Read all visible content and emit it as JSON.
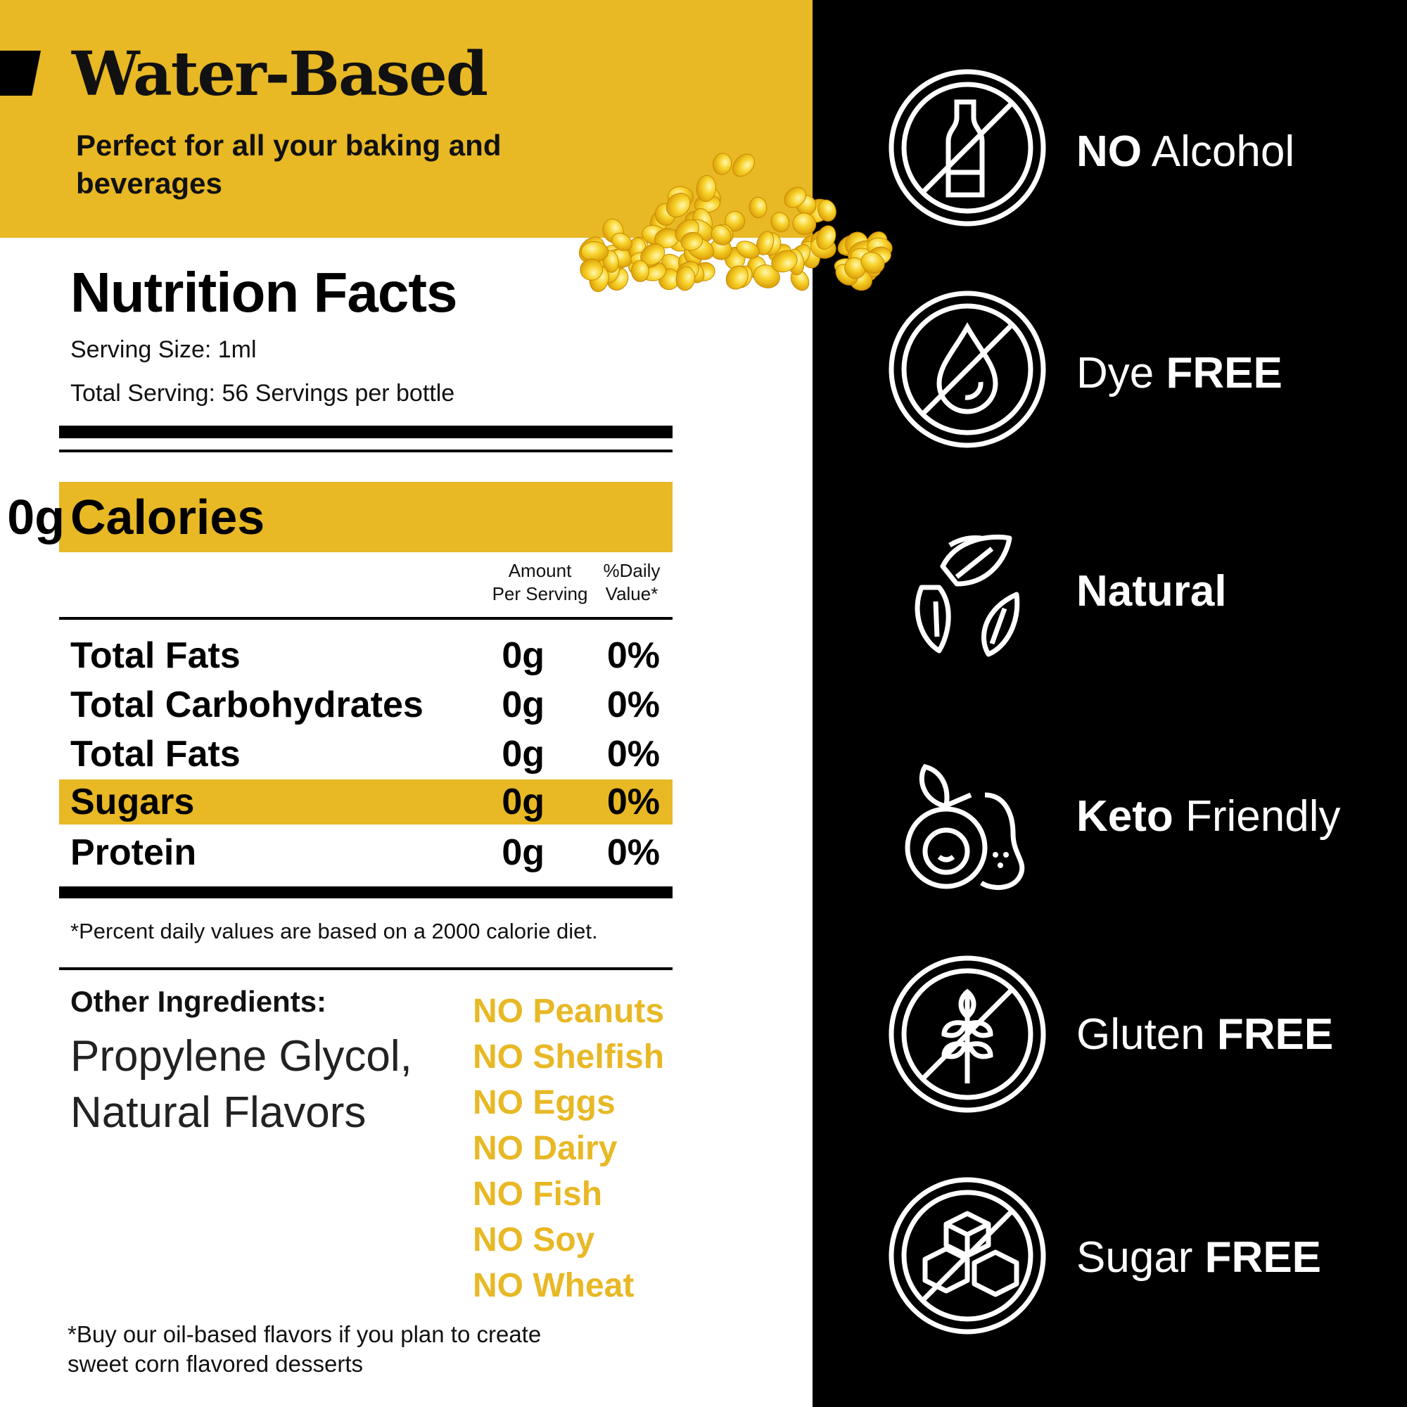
{
  "header": {
    "title": "Water-Based",
    "subtitle": "Perfect for all your baking and beverages"
  },
  "nutrition": {
    "title": "Nutrition Facts",
    "serving_size": "Serving Size: 1ml",
    "total_serving": "Total Serving: 56 Servings per bottle",
    "calories_label": "Calories",
    "calories_value": "0g",
    "col_amount_1": "Amount",
    "col_amount_2": "Per Serving",
    "col_dv_1": "%Daily",
    "col_dv_2": "Value*",
    "rows": [
      {
        "name": "Total Fats",
        "amount": "0g",
        "dv": "0%"
      },
      {
        "name": "Total Carbohydrates",
        "amount": "0g",
        "dv": "0%"
      },
      {
        "name": "Total Fats",
        "amount": "0g",
        "dv": "0%"
      },
      {
        "name": "Sugars",
        "amount": "0g",
        "dv": "0%"
      },
      {
        "name": "Protein",
        "amount": "0g",
        "dv": "0%"
      }
    ],
    "footnote": "*Percent daily values are based on a 2000 calorie diet."
  },
  "ingredients": {
    "label": "Other Ingredients:",
    "line1": "Propylene Glycol,",
    "line2": "Natural Flavors",
    "allergens": [
      "NO Peanuts",
      "NO Shelfish",
      "NO Eggs",
      "NO Dairy",
      "NO Fish",
      "NO Soy",
      "NO Wheat"
    ],
    "footnote_line1": "*Buy our oil-based flavors if you plan to create",
    "footnote_line2": "sweet corn flavored desserts"
  },
  "badges": [
    {
      "icon": "no-alcohol-icon",
      "bold": "NO",
      "text": " Alcohol",
      "bold_first": true
    },
    {
      "icon": "dye-free-icon",
      "text": "Dye ",
      "bold": "FREE",
      "bold_first": false
    },
    {
      "icon": "natural-icon",
      "bold": "Natural",
      "text": "",
      "bold_first": true
    },
    {
      "icon": "keto-avocado-icon",
      "bold": "Keto",
      "text": " Friendly",
      "bold_first": true
    },
    {
      "icon": "gluten-free-icon",
      "text": "Gluten ",
      "bold": "FREE",
      "bold_first": false
    },
    {
      "icon": "sugar-free-icon",
      "text": "Sugar ",
      "bold": "FREE",
      "bold_first": false
    }
  ],
  "colors": {
    "accent": "#e8b825",
    "dark": "#000000",
    "light": "#ffffff"
  }
}
